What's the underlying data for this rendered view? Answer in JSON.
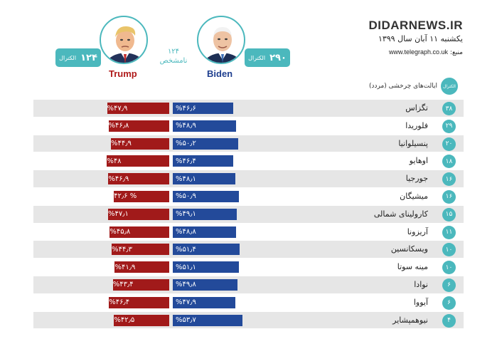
{
  "header": {
    "site_name": "DIDARNEWS.IR",
    "date": "یکشنبه ۱۱ آبان سال ۱۳۹۹",
    "source_label": "منبع:",
    "source_url": "www.telegraph.co.uk"
  },
  "candidates": {
    "biden": {
      "name": "Biden",
      "electoral_votes": "۲۹۰",
      "electoral_label": "الکترال",
      "color": "#234a9a"
    },
    "trump": {
      "name": "Trump",
      "electoral_votes": "۱۲۴",
      "electoral_label": "الکترال",
      "color": "#a11a1a"
    }
  },
  "undecided": {
    "count": "۱۲۴",
    "label": "نامشخص"
  },
  "columns": {
    "electoral_label": "الکترال",
    "states_header": "ایالت‌های چرخشی (مردد)"
  },
  "accent_color": "#4bb8bd",
  "chart_data": {
    "type": "bar",
    "categories": [
      "تگزاس",
      "فلوریدا",
      "پنسیلوانیا",
      "اوهایو",
      "جورجیا",
      "میشیگان",
      "کارولینای شمالی",
      "آریزونا",
      "ویسکانسین",
      "مینه سوتا",
      "نوادا",
      "آیووا",
      "نیوهمپشایر"
    ],
    "electoral_votes": [
      "۳۸",
      "۲۹",
      "۲۰",
      "۱۸",
      "۱۶",
      "۱۶",
      "۱۵",
      "۱۱",
      "۱۰",
      "۱۰",
      "۶",
      "۶",
      "۴"
    ],
    "series": [
      {
        "name": "Biden",
        "values": [
          46.6,
          48.9,
          50.2,
          46.4,
          48.1,
          50.9,
          49.1,
          48.8,
          51.4,
          51.1,
          49.8,
          47.9,
          53.7
        ],
        "labels": [
          "%۴۶٫۶",
          "%۴۸٫۹",
          "%۵۰٫۲",
          "%۴۶٫۴",
          "%۴۸٫۱",
          "%۵۰٫۹",
          "%۴۹٫۱",
          "%۴۸٫۸",
          "%۵۱٫۴",
          "%۵۱٫۱",
          "%۴۹٫۸",
          "%۴۷٫۹",
          "%۵۳٫۷"
        ]
      },
      {
        "name": "Trump",
        "values": [
          47.9,
          46.8,
          44.9,
          48,
          46.9,
          42.6,
          47.1,
          45.8,
          44.3,
          41.9,
          43.4,
          46.4,
          42.5
        ],
        "labels": [
          "%۴۷٫۹",
          "%۴۶٫۸",
          "%۴۴٫۹",
          "%۴۸",
          "%۴۶٫۹",
          "% ۴۲٫۶",
          "%۴۷٫۱",
          "%۴۵٫۸",
          "%۴۴٫۳",
          "%۴۱٫۹",
          "%۴۳٫۴",
          "%۴۶٫۴",
          "%۴۲٫۵"
        ]
      }
    ]
  }
}
